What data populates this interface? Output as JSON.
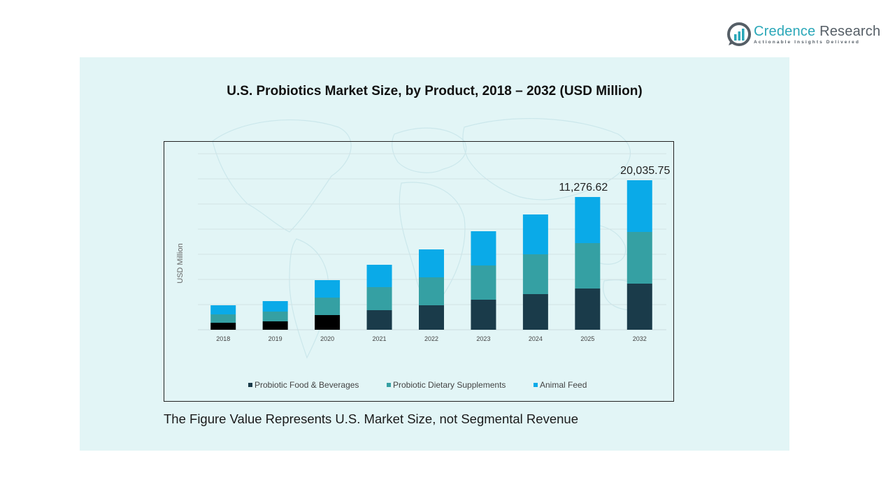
{
  "brand": {
    "name_part1": "Credence",
    "name_part2": " Research",
    "tagline": "Actionable Insights Delivered",
    "accent_color": "#2aa7b8"
  },
  "footnote": "The Figure Value Represents U.S. Market Size, not Segmental Revenue",
  "chart_data": {
    "type": "bar",
    "stacked": true,
    "title": "U.S. Probiotics Market Size, by Product, 2018 – 2032 (USD Million)",
    "xlabel": "",
    "ylabel": "USD Million",
    "categories": [
      "2018",
      "2019",
      "2020",
      "2021",
      "2022",
      "2023",
      "2024",
      "2025",
      "2032"
    ],
    "series": [
      {
        "name": "Probiotic Food & Beverages",
        "color": "#1a3b4a",
        "alt_color_early_years": "#000000",
        "values": [
          594,
          712,
          1246,
          1662,
          2077,
          2552,
          3027,
          3502,
          6179
        ]
      },
      {
        "name": "Probiotic Dietary Supplements",
        "color": "#35a0a3",
        "values": [
          712,
          831,
          1484,
          1959,
          2374,
          2908,
          3383,
          3858,
          6928
        ]
      },
      {
        "name": "Animal Feed",
        "color": "#0aaae8",
        "values": [
          772,
          890,
          1484,
          1899,
          2374,
          2908,
          3383,
          3917,
          6929
        ]
      }
    ],
    "dark_segment_years": [
      "2018",
      "2019",
      "2020"
    ],
    "annotations": [
      {
        "category": "2025",
        "label": "11,276.62",
        "value": 11276.62
      },
      {
        "category": "2032",
        "label": "20,035.75",
        "value": 20035.75
      }
    ],
    "ylim": [
      0,
      15000
    ],
    "y_ticks_shown": false,
    "grid": true,
    "legend": "bottom"
  }
}
